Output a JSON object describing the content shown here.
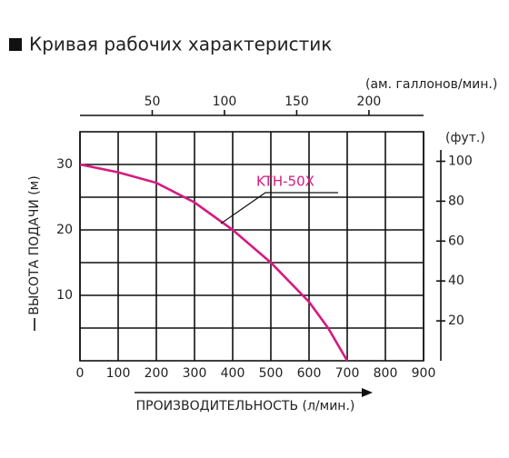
{
  "chart_data": {
    "type": "line",
    "title": "Кривая рабочих характеристик",
    "x_label": "ПРОИЗВОДИТЕЛЬНОСТЬ (л/мин.)",
    "y_label": "ВЫСОТА ПОДАЧИ (м)",
    "x2_label": "(ам. галлонов/мин.)",
    "y2_label": "(фут.)",
    "xlim": [
      0,
      900
    ],
    "xticks": [
      0,
      100,
      200,
      300,
      400,
      500,
      600,
      700,
      800,
      900
    ],
    "ylim": [
      0,
      35
    ],
    "yticks": [
      10,
      20,
      30
    ],
    "ygrid": [
      5,
      10,
      15,
      20,
      25,
      30
    ],
    "x2lim": [
      0,
      237.8
    ],
    "x2ticks": [
      50,
      100,
      150,
      200
    ],
    "y2lim": [
      0,
      114.8
    ],
    "y2ticks": [
      20,
      40,
      60,
      80,
      100
    ],
    "grid": true,
    "x": [
      0,
      100,
      200,
      300,
      400,
      500,
      600,
      650,
      700
    ],
    "series": [
      {
        "name": "KTH-50X",
        "color": "#d61a7f",
        "values": [
          30,
          28.8,
          27.2,
          24.2,
          20,
          15,
          9,
          5,
          0
        ]
      }
    ]
  }
}
